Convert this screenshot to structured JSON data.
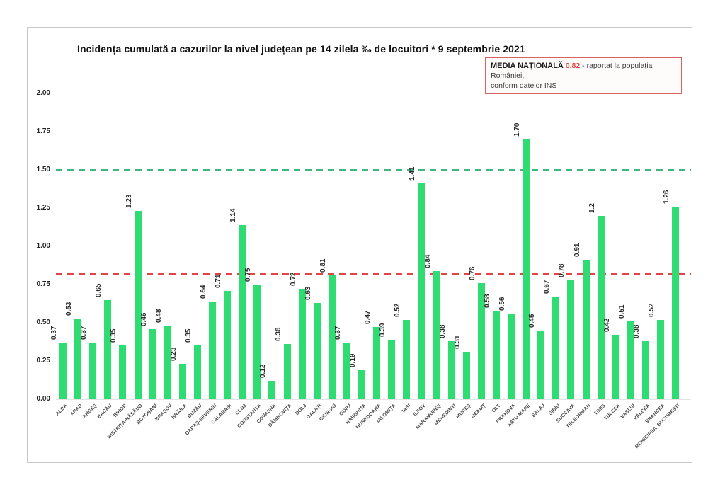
{
  "title": "Incidența cumulată a cazurilor la nivel județean pe 14 zilela ‰ de locuitori * 9 septembrie 2021",
  "national_average_box": {
    "label": "MEDIA NAȚIONALĂ",
    "value": "0,82",
    "text_after_value": "- raportat la populația României,",
    "second_line": "conform datelor INS",
    "value_color": "#e03b3b",
    "border_color": "#d96262"
  },
  "chart_data": {
    "type": "bar",
    "title": "Incidența cumulată a cazurilor la nivel județean pe 14 zilela ‰ de locuitori * 9 septembrie 2021",
    "xlabel": "",
    "ylabel": "",
    "ylim": [
      0,
      2.0
    ],
    "grid": false,
    "legend_position": "top-right",
    "bar_color": "#2edc71",
    "categories": [
      "ALBA",
      "ARAD",
      "ARGEȘ",
      "BACĂU",
      "BIHOR",
      "BISTRIȚA-NĂSĂUD",
      "BOTOȘANI",
      "BRAȘOV",
      "BRĂILA",
      "BUZĂU",
      "CARAȘ-SEVERIN",
      "CĂLĂRAȘI",
      "CLUJ",
      "CONSTANȚA",
      "COVASNA",
      "DÂMBOVIȚA",
      "DOLJ",
      "GALAȚI",
      "GIURGIU",
      "GORJ",
      "HARGHITA",
      "HUNEDOARA",
      "IALOMIȚA",
      "IAȘI",
      "ILFOV",
      "MARAMUREȘ",
      "MEHEDINȚI",
      "MUREȘ",
      "NEAMȚ",
      "OLT",
      "PRAHOVA",
      "SATU MARE",
      "SĂLAJ",
      "SIBIU",
      "SUCEAVA",
      "TELEORMAN",
      "TIMIȘ",
      "TULCEA",
      "VASLUI",
      "VÂLCEA",
      "VRANCEA",
      "MUNICIPIUL BUCUREȘTI"
    ],
    "values": [
      0.37,
      0.53,
      0.37,
      0.65,
      0.35,
      1.23,
      0.46,
      0.48,
      0.23,
      0.35,
      0.64,
      0.71,
      1.14,
      0.75,
      0.12,
      0.36,
      0.72,
      0.63,
      0.81,
      0.37,
      0.19,
      0.47,
      0.39,
      0.52,
      1.41,
      0.84,
      0.38,
      0.31,
      0.76,
      0.58,
      0.56,
      1.7,
      0.45,
      0.67,
      0.78,
      0.91,
      1.2,
      0.42,
      0.51,
      0.38,
      0.52,
      1.26
    ],
    "value_labels": [
      "0.37",
      "0.53",
      "0.37",
      "0.65",
      "0.35",
      "1.23",
      "0.46",
      "0.48",
      "0.23",
      "0.35",
      "0.64",
      "0.71",
      "1.14",
      "0.75",
      "0.12",
      "0.36",
      "0.72",
      "0.63",
      "0.81",
      "0.37",
      "0.19",
      "0.47",
      "0.39",
      "0.52",
      "1.41",
      "0.84",
      "0.38",
      "0.31",
      "0.76",
      "0.58",
      "0.56",
      "1.70",
      "0.45",
      "0.67",
      "0.78",
      "0.91",
      "1.2",
      "0.42",
      "0.51",
      "0.38",
      "0.52",
      "1.26"
    ],
    "ytick_labels": [
      "2.00",
      "1.75",
      "1.50",
      "1.25",
      "1.00",
      "0.75",
      "0.50",
      "0.25",
      "0.00"
    ],
    "yticks": [
      2.0,
      1.75,
      1.5,
      1.25,
      1.0,
      0.75,
      0.5,
      0.25,
      0.0
    ],
    "reference_lines": [
      {
        "name": "upper-threshold-line",
        "value": 1.5,
        "color": "#3cb87f",
        "style": "dashed"
      },
      {
        "name": "national-average-line",
        "value": 0.82,
        "color": "#e04444",
        "style": "dashed"
      }
    ]
  }
}
